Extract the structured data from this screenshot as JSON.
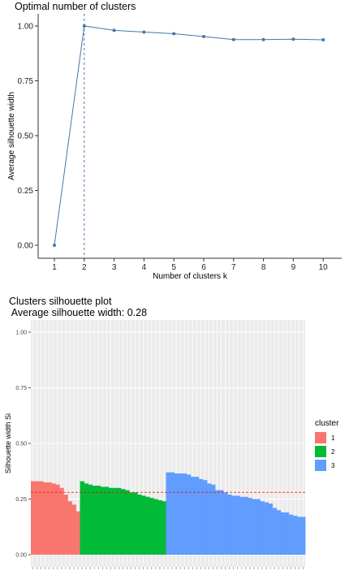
{
  "chart_data": [
    {
      "type": "line",
      "title": "Optimal number of clusters",
      "xlabel": "Number of clusters k",
      "ylabel": "Average silhouette width",
      "x": [
        1,
        2,
        3,
        4,
        5,
        6,
        7,
        8,
        9,
        10
      ],
      "y": [
        0.0,
        1.0,
        0.98,
        0.972,
        0.965,
        0.952,
        0.938,
        0.938,
        0.94,
        0.937
      ],
      "x_ticks": [
        "1",
        "2",
        "3",
        "4",
        "5",
        "6",
        "7",
        "8",
        "9",
        "10"
      ],
      "y_ticks": [
        "0.00",
        "0.25",
        "0.50",
        "0.75",
        "1.00"
      ],
      "ylim": [
        0,
        1
      ],
      "optimal_k": 2,
      "grid": false,
      "line_color": "#4477aa"
    },
    {
      "type": "bar",
      "title": "Clusters silhouette plot",
      "subtitle": " Average silhouette width: 0.28",
      "ylabel": "Silhouette width Si",
      "xlabel": "",
      "average": 0.28,
      "ylim": [
        0,
        1
      ],
      "y_ticks": [
        "0.00",
        "0.25",
        "0.50",
        "0.75",
        "1.00"
      ],
      "grid": true,
      "legend": {
        "title": "cluster",
        "placement": "right",
        "entries": [
          "1",
          "2",
          "3"
        ]
      },
      "series": [
        {
          "name": "1",
          "color": "#F8766D",
          "values": [
            0.33,
            0.33,
            0.33,
            0.325,
            0.325,
            0.32,
            0.315,
            0.3,
            0.27,
            0.24,
            0.225,
            0.195
          ]
        },
        {
          "name": "2",
          "color": "#00BA38",
          "values": [
            0.33,
            0.32,
            0.315,
            0.31,
            0.31,
            0.305,
            0.305,
            0.3,
            0.3,
            0.3,
            0.295,
            0.29,
            0.28,
            0.28,
            0.27,
            0.265,
            0.26,
            0.255,
            0.25,
            0.245,
            0.24
          ]
        },
        {
          "name": "3",
          "color": "#619CFF",
          "values": [
            0.37,
            0.37,
            0.365,
            0.365,
            0.365,
            0.36,
            0.35,
            0.35,
            0.34,
            0.335,
            0.32,
            0.315,
            0.29,
            0.29,
            0.28,
            0.27,
            0.265,
            0.265,
            0.26,
            0.26,
            0.255,
            0.25,
            0.25,
            0.24,
            0.235,
            0.23,
            0.21,
            0.2,
            0.19,
            0.19,
            0.18,
            0.175,
            0.17,
            0.17
          ]
        }
      ]
    }
  ]
}
